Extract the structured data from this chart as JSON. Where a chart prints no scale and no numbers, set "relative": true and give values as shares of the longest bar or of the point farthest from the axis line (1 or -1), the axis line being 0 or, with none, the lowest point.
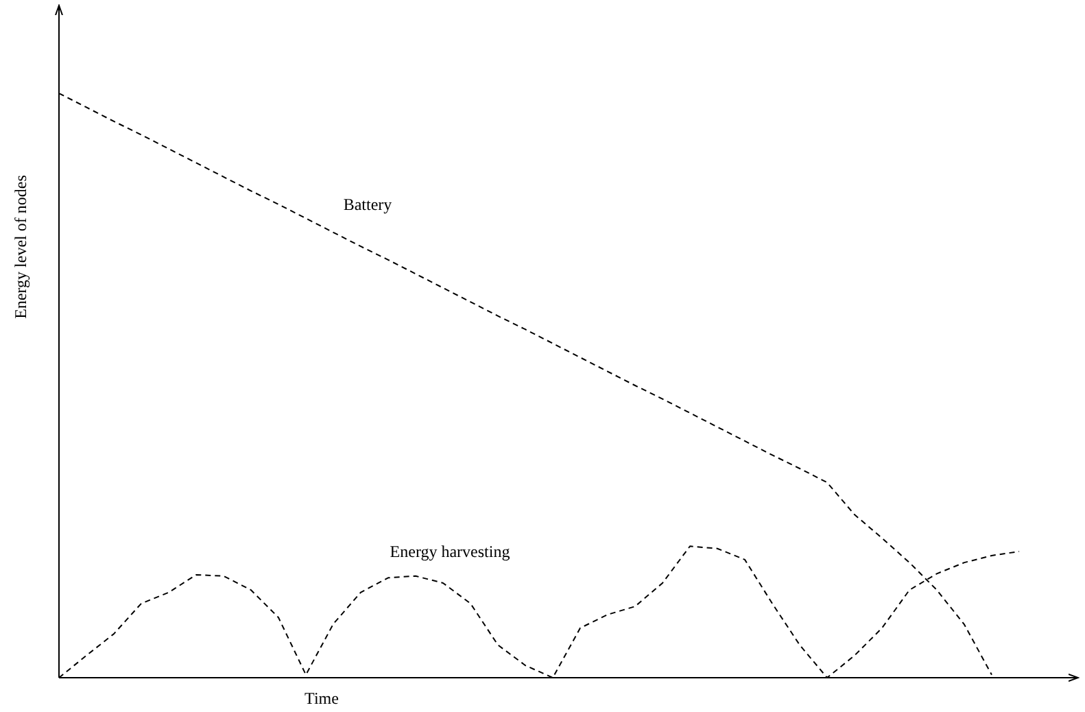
{
  "chart_data": {
    "type": "line",
    "relative": true,
    "xlabel": "Time",
    "ylabel": "Energy level of nodes",
    "line_style": "dashed",
    "marker": "none",
    "legend": false,
    "categories": [
      null,
      null,
      null,
      null,
      null,
      null,
      null,
      null,
      null,
      null,
      null,
      null,
      null,
      null,
      null,
      null,
      null,
      null,
      null,
      null,
      null,
      null,
      null,
      null,
      null,
      null,
      null,
      null,
      null,
      null,
      null,
      null,
      null,
      null,
      null,
      null,
      null,
      null
    ],
    "series": [
      {
        "name": "Battery",
        "color": "#000000",
        "values": [
          1,
          0.976,
          0.952,
          0.929,
          0.905,
          0.881,
          0.857,
          0.833,
          0.81,
          0.786,
          0.762,
          0.738,
          0.715,
          0.691,
          0.667,
          0.643,
          0.619,
          0.596,
          0.572,
          0.548,
          0.524,
          0.5,
          0.477,
          0.453,
          0.429,
          0.405,
          0.381,
          0.358,
          0.334,
          0.279,
          0.239,
          0.197,
          0.15,
          0.091,
          0.005,
          null,
          null,
          null
        ]
      },
      {
        "name": "Energy harvesting",
        "color": "#000000",
        "values": [
          0,
          0.038,
          0.075,
          0.127,
          0.146,
          0.176,
          0.174,
          0.15,
          0.103,
          0.005,
          0.092,
          0.146,
          0.171,
          0.174,
          0.162,
          0.127,
          0.056,
          0.021,
          0,
          0.085,
          0.108,
          0.122,
          0.162,
          0.225,
          0.221,
          0.202,
          0.127,
          0.056,
          0,
          0.038,
          0.085,
          0.15,
          0.178,
          0.197,
          0.209,
          0.216,
          null,
          null
        ]
      }
    ]
  }
}
